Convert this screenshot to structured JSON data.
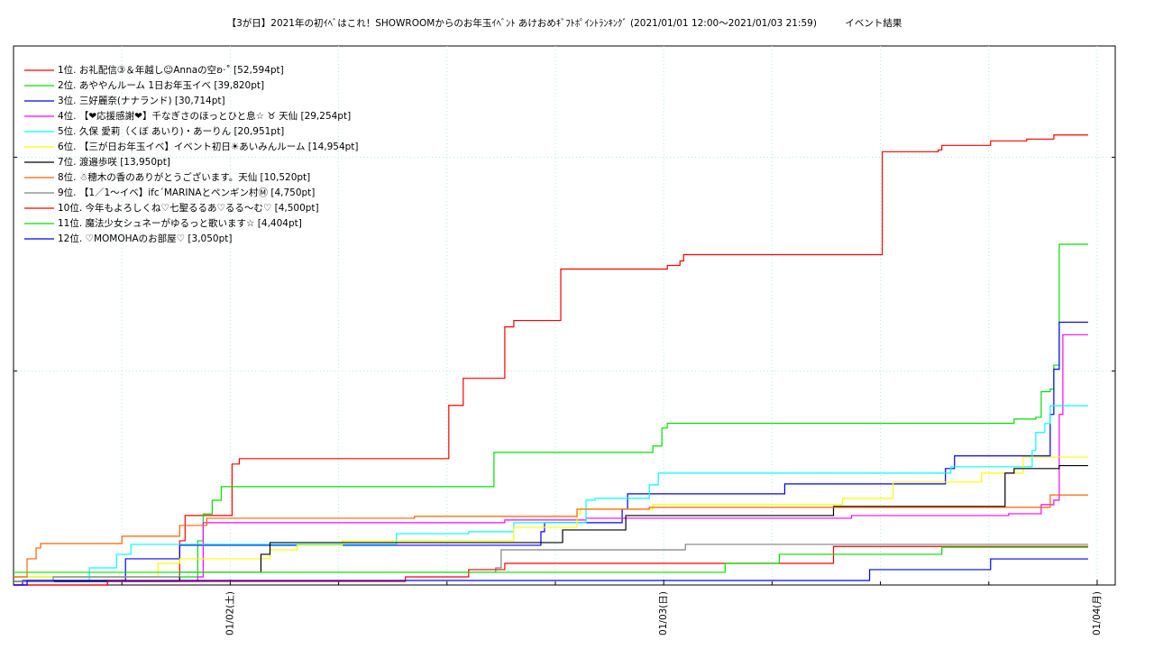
{
  "chart_data": {
    "type": "step",
    "title": "【3が日】2021年の初ｲﾍﾞはこれ！SHOWROOMからのお年玉ｲﾍﾞﾝﾄ あけおめｷﾞﾌﾄﾎﾟｲﾝﾄﾗﾝｷﾝｸﾞ (2021/01/01 12:00〜2021/01/03 21:59)　　　イベント結果",
    "xlim": [
      0,
      61
    ],
    "ylim": [
      0,
      63000
    ],
    "xticks": [
      {
        "value": 12,
        "label": "01/02(土)"
      },
      {
        "value": 36,
        "label": "01/03(日)"
      },
      {
        "value": 60,
        "label": "01/04(月)"
      }
    ],
    "x_minor_ticks": [
      6,
      18,
      24,
      30,
      42,
      48,
      54
    ],
    "yticks": [
      25000,
      50000
    ],
    "grid": true,
    "legend": "upper left",
    "series": [
      {
        "name": "1位. お礼配信③＆年越し☺Annaの空ʚ·˚ [52,594pt]",
        "color": "#ff0000",
        "x": [
          0,
          5.2,
          9.2,
          9.5,
          12.1,
          12.5,
          24.1,
          24.9,
          27.2,
          27.7,
          30.3,
          36.2,
          36.9,
          37.1,
          48.1,
          51.2,
          51.4,
          54.1,
          56.1,
          57.6,
          59.5
        ],
        "values": [
          0,
          500,
          5170,
          8124,
          14137,
          14770,
          20995,
          24160,
          30173,
          30912,
          36925,
          37347,
          37875,
          38613,
          50640,
          50851,
          51379,
          51906,
          52117,
          52594,
          52594
        ]
      },
      {
        "name": "2位. あややんルーム 1日お年玉イベ [39,820pt]",
        "color": "#00e000",
        "x": [
          0,
          10.2,
          10.5,
          11.0,
          11.5,
          26.6,
          35.4,
          35.9,
          36.2,
          55.4,
          56.6,
          56.9,
          57.4,
          57.6,
          57.9,
          59.5
        ],
        "values": [
          950,
          5170,
          8300,
          9900,
          11500,
          15500,
          16250,
          18350,
          18900,
          19400,
          19600,
          22600,
          22900,
          25700,
          39820,
          39820
        ]
      },
      {
        "name": "3位. 三好麗奈(ナナランド) [30,714pt]",
        "color": "#0000ff",
        "x": [
          0,
          0.5,
          6.2,
          9.2,
          29.2,
          29.4,
          33.7,
          34.0,
          42.7,
          51.6,
          52.1,
          57.4,
          57.6,
          57.9,
          59.5
        ],
        "values": [
          0,
          530,
          3060,
          4640,
          6225,
          7280,
          8860,
          10655,
          11815,
          13610,
          15090,
          19940,
          25215,
          30714,
          30714
        ]
      },
      {
        "name": "4位. 【❤応援感謝❤】千なぎさのほっとひと息☆ ♉ 天仙 [29,254pt]",
        "color": "#ff00ff",
        "x": [
          0,
          0.75,
          10.2,
          10.5,
          27.2,
          31.7,
          46.4,
          55.1,
          56.9,
          57.6,
          57.9,
          58.1,
          59.5
        ],
        "values": [
          0,
          420,
          950,
          7280,
          7600,
          7800,
          8120,
          8330,
          9390,
          9920,
          19940,
          29254,
          29254
        ]
      },
      {
        "name": "5位. 久保 愛莉（くぼ あいり)・あーりん [20,951pt]",
        "color": "#00ffff",
        "x": [
          0,
          4.2,
          5.7,
          6.5,
          14.2,
          21.2,
          25.2,
          27.7,
          31.7,
          32.2,
          35.2,
          35.7,
          51.9,
          56.4,
          56.6,
          57.1,
          57.4,
          59.5
        ],
        "values": [
          420,
          2000,
          3590,
          4750,
          4750,
          6000,
          6225,
          7280,
          9920,
          10130,
          11710,
          13080,
          13820,
          15720,
          17830,
          18880,
          20951,
          20951
        ]
      },
      {
        "name": "6位. 【三が日お年玉イベ】イベント初日☀あいみんルーム [14,954pt]",
        "color": "#ffff00",
        "x": [
          0,
          8.0,
          9.2,
          14.2,
          15.7,
          18.2,
          27.7,
          31.2,
          31.4,
          35.4,
          45.9,
          48.7,
          53.6,
          55.9,
          59.5
        ],
        "values": [
          950,
          2530,
          3060,
          4110,
          4640,
          5170,
          6750,
          8330,
          8860,
          9390,
          10130,
          12030,
          13080,
          14954,
          14954
        ]
      },
      {
        "name": "7位. 渡邉歩咲 [13,950pt]",
        "color": "#000000",
        "x": [
          0,
          9.2,
          13.7,
          14.2,
          30.4,
          33.9,
          45.4,
          54.9,
          55.4,
          57.9,
          59.5
        ],
        "values": [
          420,
          1480,
          3590,
          4960,
          6435,
          8120,
          9180,
          13080,
          13610,
          13950,
          13950
        ]
      },
      {
        "name": "8位. ☃穂木の香のありがとうございます。天仙 [10,520pt]",
        "color": "#ff6000",
        "x": [
          0,
          0.75,
          1.25,
          1.5,
          6.0,
          9.2,
          10.7,
          22.2,
          31.2,
          35.2,
          57.4,
          59.5
        ],
        "values": [
          950,
          3060,
          4325,
          4850,
          5700,
          6960,
          7800,
          8020,
          8860,
          9070,
          10520,
          10520
        ]
      },
      {
        "name": "9位. 【1／1〜イベ】ifc´MARINAとペンギン村Ⓜ [4,750pt]",
        "color": "#808080",
        "x": [
          0,
          2.2,
          9.2,
          26.7,
          27.0,
          37.2,
          59.5
        ],
        "values": [
          420,
          950,
          1480,
          2000,
          4110,
          4750,
          4750
        ]
      },
      {
        "name": "10位. 今年もよろしくね♡七聖るるあ♡るる〜む♡ [4,500pt]",
        "color": "#ff0000",
        "x": [
          0,
          5.2,
          21.7,
          25.2,
          27.2,
          45.4,
          59.5
        ],
        "values": [
          0,
          420,
          950,
          1800,
          2530,
          4500,
          4500
        ]
      },
      {
        "name": "11位. 魔法少女シュネーがゆるっと歌います☆ [4,404pt]",
        "color": "#00e000",
        "x": [
          0,
          39.4,
          42.4,
          51.4,
          59.5
        ],
        "values": [
          1480,
          2530,
          3590,
          4404,
          4404
        ]
      },
      {
        "name": "12位. ♡MOMOHAのお部屋♡ [3,050pt]",
        "color": "#0000ff",
        "x": [
          0,
          0.75,
          47.4,
          54.1,
          59.5
        ],
        "values": [
          0,
          530,
          1800,
          3050,
          3050
        ]
      }
    ]
  }
}
